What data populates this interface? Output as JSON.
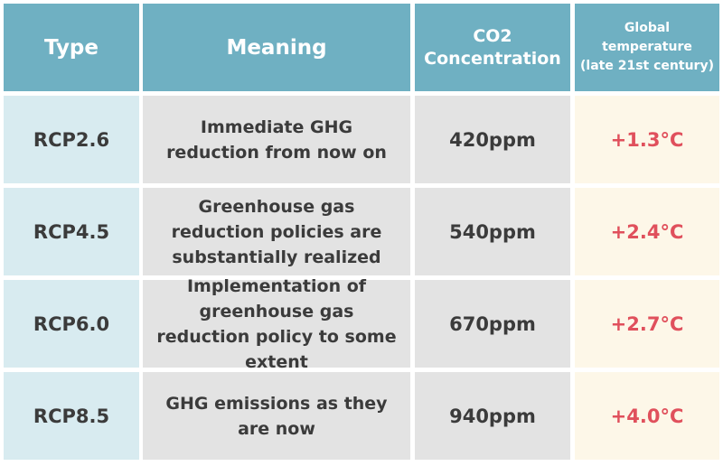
{
  "table": {
    "headers": {
      "type": "Type",
      "meaning": "Meaning",
      "co2_line1": "CO2",
      "co2_line2": "Concentration",
      "temp_line1": "Global",
      "temp_line2": "temperature",
      "temp_line3": "(late 21st century)"
    },
    "rows": [
      {
        "type": "RCP2.6",
        "meaning": "Immediate GHG reduction from now on",
        "co2": "420ppm",
        "temperature": "+1.3°C"
      },
      {
        "type": "RCP4.5",
        "meaning": "Greenhouse gas reduction policies are substantially realized",
        "co2": "540ppm",
        "temperature": "+2.4°C"
      },
      {
        "type": "RCP6.0",
        "meaning": "Implementation of greenhouse gas reduction policy to some extent",
        "co2": "670ppm",
        "temperature": "+2.7°C"
      },
      {
        "type": "RCP8.5",
        "meaning": "GHG emissions as they are now",
        "co2": "940ppm",
        "temperature": "+4.0°C"
      }
    ]
  },
  "colors": {
    "header_bg": "#6fb0c2",
    "type_bg": "#d8ebf0",
    "meaning_bg": "#e3e3e3",
    "temp_bg": "#fdf7e8",
    "temp_text": "#e0505c"
  }
}
